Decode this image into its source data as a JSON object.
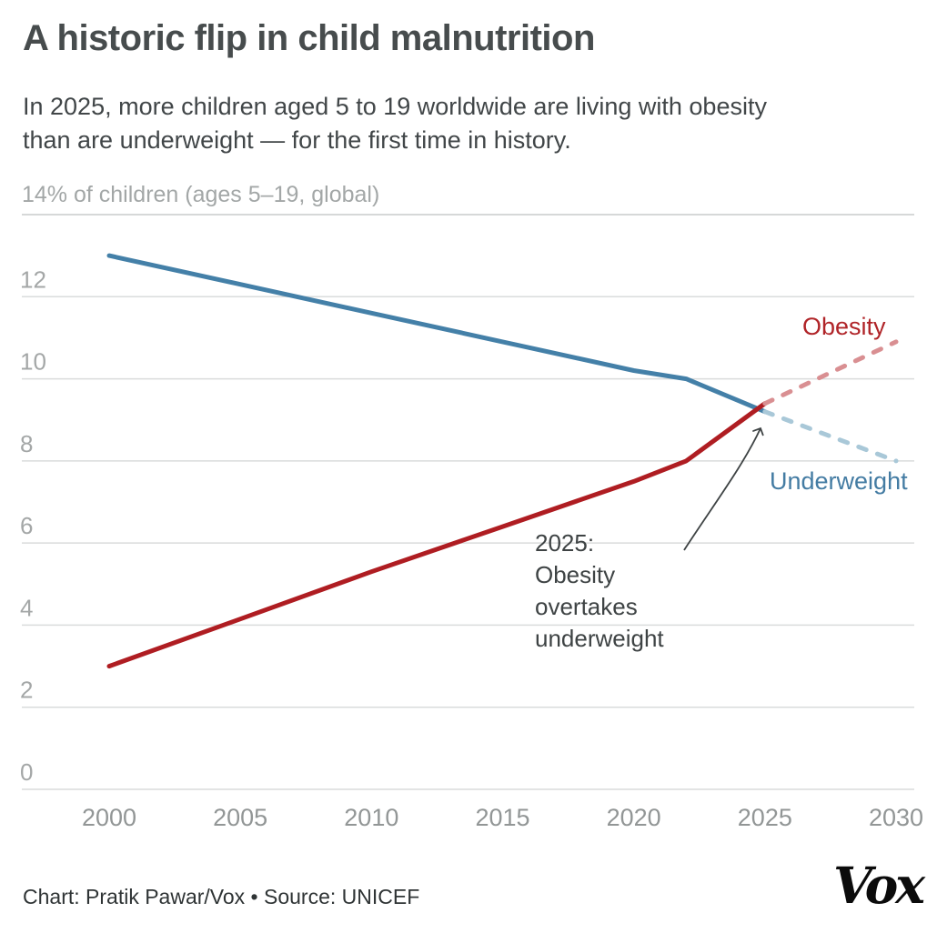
{
  "header": {
    "title": "A historic flip in child malnutrition",
    "subtitle": "In 2025, more children aged 5 to 19 worldwide are living with obesity\nthan are underweight — for the first time in history."
  },
  "chart_data": {
    "type": "line",
    "axis_title": "14% of children (ages 5–19, global)",
    "xlabel": "",
    "ylabel": "% of children (ages 5–19, global)",
    "xlim": [
      2000,
      2030
    ],
    "ylim": [
      0,
      14
    ],
    "grid": "horizontal",
    "x_ticks": [
      2000,
      2005,
      2010,
      2015,
      2020,
      2025,
      2030
    ],
    "y_ticks": [
      0,
      2,
      4,
      6,
      8,
      10,
      12
    ],
    "y_top_gridline": 14,
    "series": [
      {
        "name": "Underweight",
        "style": "solid",
        "color": "#4480a8",
        "x": [
          2000,
          2005,
          2010,
          2015,
          2020,
          2022,
          2025
        ],
        "values": [
          13.0,
          12.3,
          11.6,
          10.9,
          10.2,
          10.0,
          9.2
        ]
      },
      {
        "name": "Underweight (projection)",
        "style": "dashed",
        "color": "#a9c8d8",
        "x": [
          2025,
          2030
        ],
        "values": [
          9.2,
          8.0
        ]
      },
      {
        "name": "Obesity",
        "style": "solid",
        "color": "#af1d22",
        "x": [
          2000,
          2005,
          2010,
          2015,
          2020,
          2022,
          2025
        ],
        "values": [
          3.0,
          4.15,
          5.3,
          6.4,
          7.5,
          8.0,
          9.4
        ]
      },
      {
        "name": "Obesity (projection)",
        "style": "dashed",
        "color": "#d98f92",
        "x": [
          2025,
          2030
        ],
        "values": [
          9.4,
          10.9
        ]
      }
    ],
    "line_labels": [
      {
        "text": "Obesity",
        "color": "#b02428"
      },
      {
        "text": "Underweight",
        "color": "#447ca3"
      }
    ],
    "annotation": {
      "text": "2025:\nObesity\novertakes\nunderweight",
      "arrow_target": "intersection of obesity and underweight lines at 2025"
    },
    "crossover": {
      "year": 2025,
      "obesity": 9.4,
      "underweight": 9.2
    }
  },
  "colors": {
    "underweight_solid": "#4480a8",
    "underweight_projection": "#a9c8d8",
    "obesity_solid": "#af1d22",
    "obesity_projection": "#d98f92",
    "gridline": "#dadcdc",
    "top_gridline": "#c9cccc",
    "y_tick_label": "#a4a7a7",
    "x_tick_label": "#929696",
    "annotation_text": "#3e4344"
  },
  "footer": {
    "credit": "Chart: Pratik Pawar/Vox • Source: UNICEF",
    "logo_text": "Vox"
  }
}
